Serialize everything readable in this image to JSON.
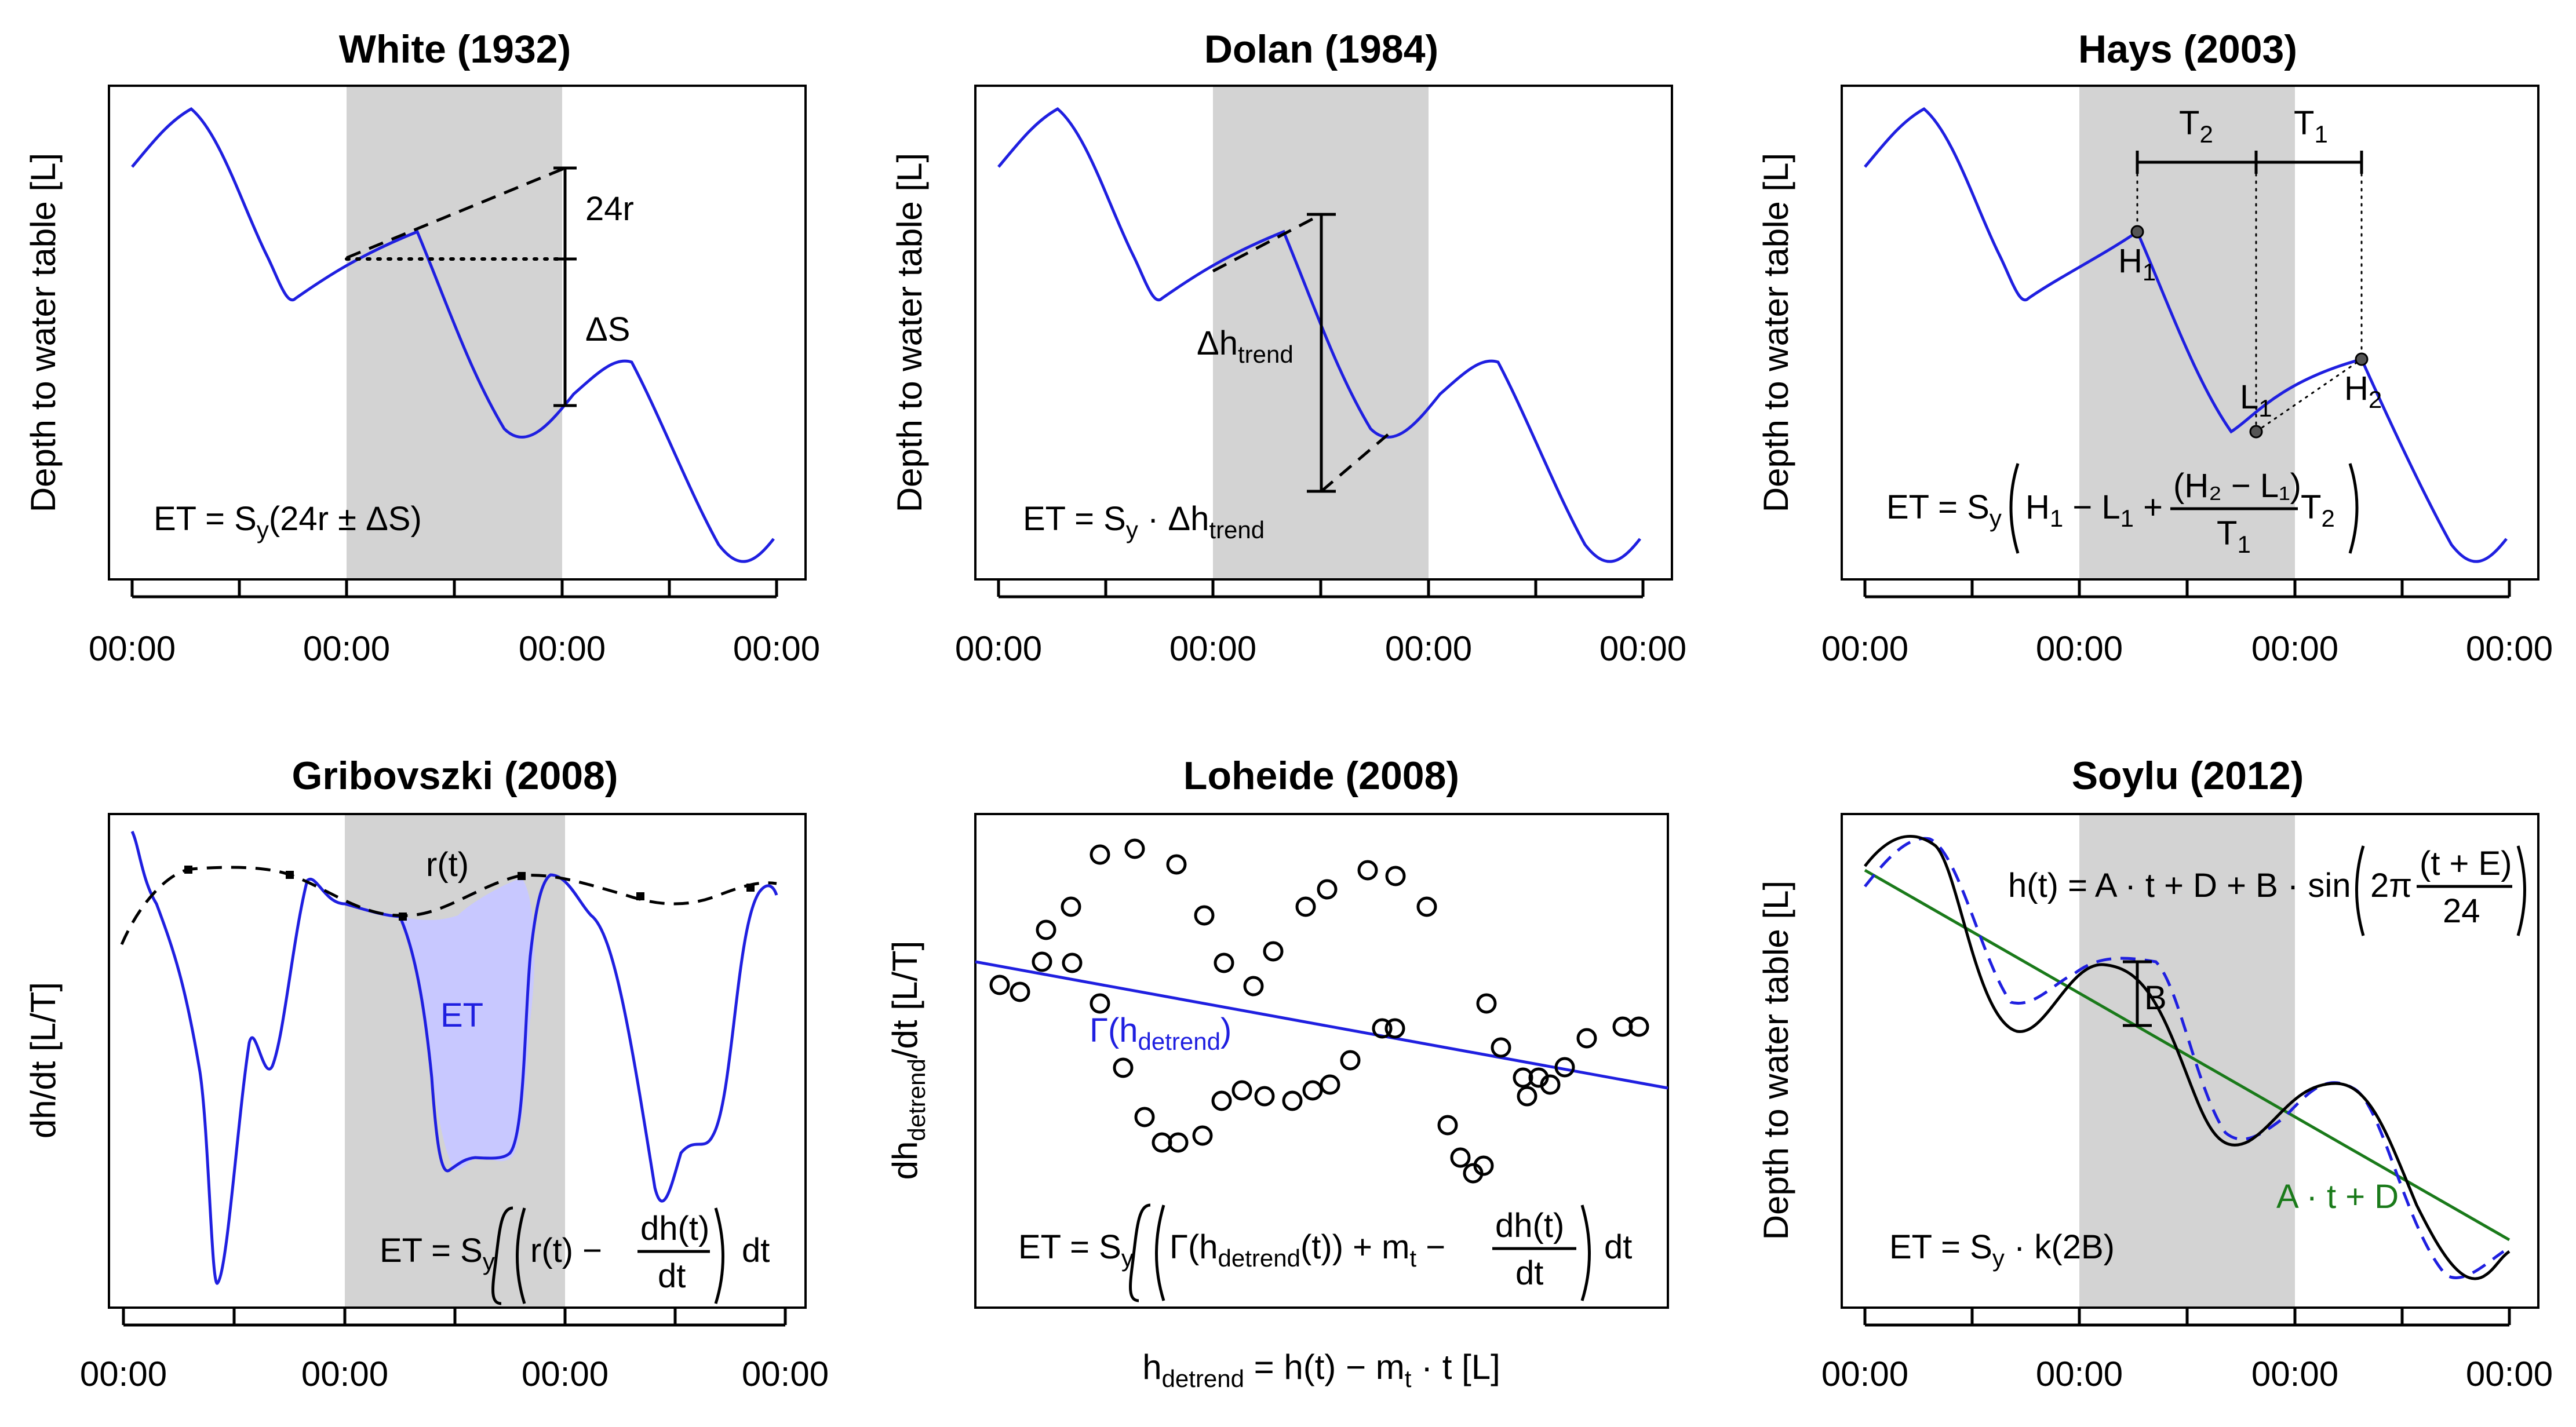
{
  "titles": {
    "p1": "White (1932)",
    "p2": "Dolan (1984)",
    "p3": "Hays (2003)",
    "p4": "Gribovszki (2008)",
    "p5": "Loheide (2008)",
    "p6": "Soylu (2012)"
  },
  "axes": {
    "ylabel_depth": "Depth to water table [L]",
    "ylabel_dhdt": "dh/dt [L/T]",
    "tick": "00:00",
    "p5_ylabel": {
      "a": "dh",
      "sub": "detrend",
      "b": "/dt [L/T]"
    },
    "p5_xlabel": {
      "a": "h",
      "sub1": "detrend",
      "b": " = h(t) − m",
      "sub2": "t",
      "c": " · t [L]"
    }
  },
  "p1": {
    "r_label": "24r",
    "ds_label": "ΔS",
    "eq_a": "ET = S",
    "eq_sub": "y",
    "eq_b": "(24r ± ΔS)"
  },
  "p2": {
    "dh_a": "Δh",
    "dh_sub": "trend",
    "eq_a": "ET = S",
    "eq_sub1": "y",
    "eq_b": " · Δh",
    "eq_sub2": "trend"
  },
  "p3": {
    "t2": "T",
    "t2_sub": "2",
    "t1": "T",
    "t1_sub": "1",
    "h1": "H",
    "h1_sub": "1",
    "l1": "L",
    "l1_sub": "1",
    "h2": "H",
    "h2_sub": "2",
    "eq_a": "ET = S",
    "eq_sub": "y",
    "eq_b": "H",
    "eq_b_sub": "1",
    "eq_c": " − L",
    "eq_c_sub": "1",
    "eq_d": " +",
    "frac_num": "(H₂ − L₁)",
    "frac_den": "T",
    "frac_den_sub": "1",
    "eq_e": "T",
    "eq_e_sub": "2"
  },
  "p4": {
    "rt_label": "r(t)",
    "et_label": "ET",
    "eq_a": "ET = S",
    "eq_sub": "y",
    "eq_b": "r(t) −",
    "frac_num": "dh(t)",
    "frac_den": "dt",
    "eq_c": "dt"
  },
  "p5": {
    "gamma_a": "Γ(h",
    "gamma_sub": "detrend",
    "gamma_b": ")",
    "eq_a": "ET = S",
    "eq_sub": "y",
    "eq_b": "Γ(h",
    "eq_b_sub": "detrend",
    "eq_c": "(t)) + m",
    "eq_c_sub": "t",
    "eq_d": " −",
    "frac_num": "dh(t)",
    "frac_den": "dt",
    "eq_e": "dt"
  },
  "p6": {
    "eq_top_a": "h(t) = A · t + D + B · sin",
    "eq_top_b": "2π",
    "frac_num": "(t + E)",
    "frac_den": "24",
    "b_label": "B",
    "line_label": "A · t + D",
    "eq_a": "ET = S",
    "eq_sub": "y",
    "eq_b": " · k(2B)"
  },
  "colors": {
    "blue": "#1f1fe0",
    "green": "#1a7a1a",
    "shade": "#d3d3d3",
    "fill_et": "#c8c8ff"
  }
}
